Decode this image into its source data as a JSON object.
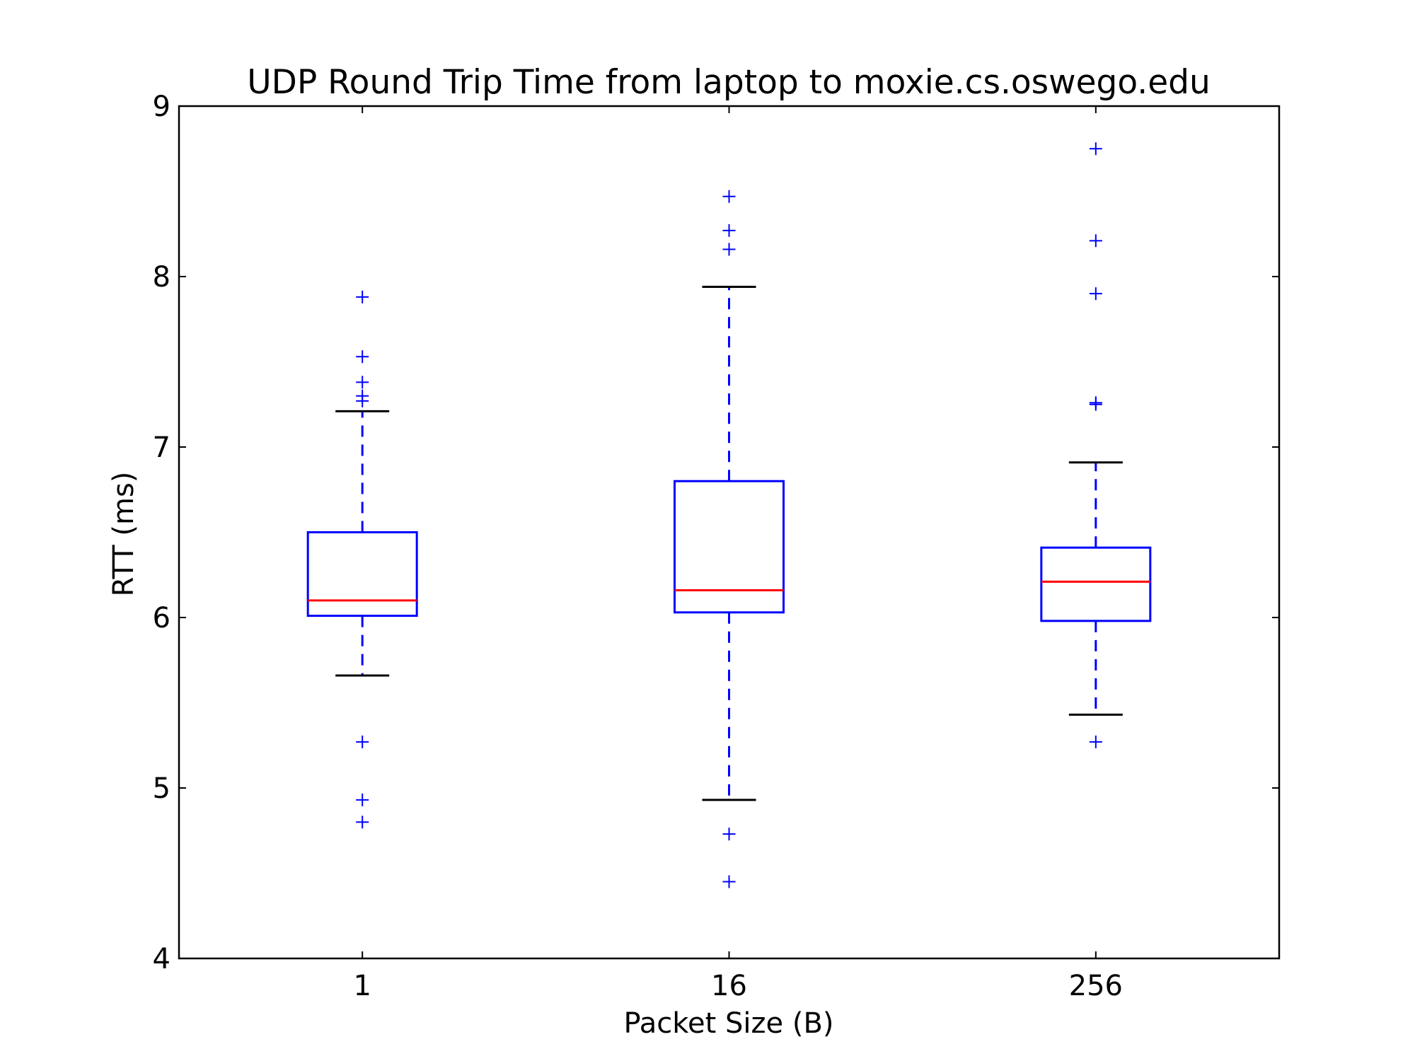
{
  "chart_data": {
    "type": "box",
    "title": "UDP Round Trip Time from laptop to moxie.cs.oswego.edu",
    "xlabel": "Packet Size (B)",
    "ylabel": "RTT (ms)",
    "ylim": [
      4,
      9
    ],
    "yticks": [
      "4",
      "5",
      "6",
      "7",
      "8",
      "9"
    ],
    "grid": false,
    "categories": [
      "1",
      "16",
      "256"
    ],
    "boxes": [
      {
        "category": "1",
        "whisker_low": 5.66,
        "q1": 6.01,
        "median": 6.1,
        "q3": 6.5,
        "whisker_high": 7.21,
        "outliers": [
          7.88,
          7.53,
          7.38,
          7.3,
          7.27,
          5.27,
          4.93,
          4.8
        ]
      },
      {
        "category": "16",
        "whisker_low": 4.93,
        "q1": 6.03,
        "median": 6.16,
        "q3": 6.8,
        "whisker_high": 7.94,
        "outliers": [
          8.47,
          8.27,
          8.16,
          4.73,
          4.45
        ]
      },
      {
        "category": "256",
        "whisker_low": 5.43,
        "q1": 5.98,
        "median": 6.21,
        "q3": 6.41,
        "whisker_high": 6.91,
        "outliers": [
          8.75,
          8.21,
          7.9,
          7.26,
          7.25,
          5.27
        ]
      }
    ],
    "colors": {
      "box": "#0000ff",
      "median": "#ff0000",
      "whisker_cap": "#000000",
      "outlier": "#0000ff"
    }
  }
}
